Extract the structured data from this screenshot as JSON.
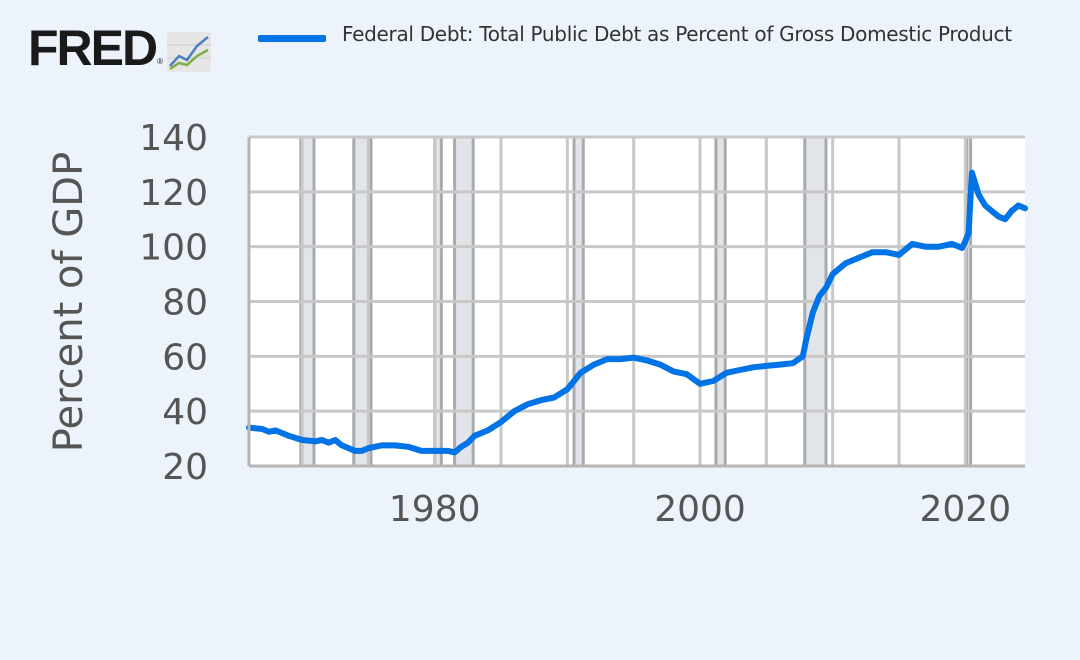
{
  "brand": {
    "logo_text": "FRED",
    "logo_mark": "®",
    "logo_icon": "line-chart-icon"
  },
  "chart_data": {
    "type": "line",
    "title": "",
    "ylabel": "Percent of GDP",
    "xlabel": "",
    "xlim": [
      1966,
      2024.5
    ],
    "ylim": [
      20,
      140
    ],
    "y_ticks": [
      20,
      40,
      60,
      80,
      100,
      120,
      140
    ],
    "x_ticks": [
      1980,
      2000,
      2020
    ],
    "grid": true,
    "legend_position": "top",
    "series": [
      {
        "name": "Federal Debt: Total Public Debt as Percent of Gross Domestic Product",
        "color": "#0073e6",
        "x": [
          1966,
          1967,
          1967.5,
          1968,
          1968.5,
          1969,
          1970,
          1971,
          1971.5,
          1972,
          1972.5,
          1973,
          1974,
          1974.5,
          1975,
          1976,
          1977,
          1978,
          1979,
          1980,
          1981,
          1981.5,
          1982,
          1982.5,
          1983,
          1984,
          1985,
          1986,
          1987,
          1988,
          1989,
          1990,
          1991,
          1992,
          1993,
          1994,
          1995,
          1996,
          1997,
          1998,
          1999,
          2000,
          2001,
          2002,
          2003,
          2004,
          2005,
          2006,
          2007,
          2007.75,
          2008,
          2008.5,
          2009,
          2009.5,
          2010,
          2011,
          2012,
          2013,
          2014,
          2015,
          2016,
          2017,
          2018,
          2019,
          2019.75,
          2020,
          2020.25,
          2020.5,
          2021,
          2021.5,
          2022,
          2022.5,
          2023,
          2023.5,
          2024,
          2024.5
        ],
        "values": [
          34,
          33.5,
          32.5,
          33,
          32,
          31,
          29.5,
          29,
          29.5,
          28.5,
          29.5,
          27.5,
          25.5,
          25.5,
          26.5,
          27.5,
          27.5,
          27,
          25.5,
          25.5,
          25.5,
          25,
          27,
          28.5,
          31,
          33,
          36,
          40,
          42.5,
          44,
          45,
          48,
          54,
          57,
          59,
          59,
          59.5,
          58.5,
          57,
          54.5,
          53.5,
          50,
          51,
          54,
          55,
          56,
          56.5,
          57,
          57.5,
          60,
          66,
          76,
          82,
          85,
          90,
          94,
          96,
          98,
          98,
          97,
          101,
          100,
          100,
          101,
          99.5,
          102,
          105,
          127,
          119,
          115,
          113,
          111,
          110,
          113,
          115,
          114
        ]
      }
    ],
    "recessions": [
      [
        1969.9,
        1970.9
      ],
      [
        1973.9,
        1975.2
      ],
      [
        1980.0,
        1980.5
      ],
      [
        1981.5,
        1982.9
      ],
      [
        1990.5,
        1991.2
      ],
      [
        2001.2,
        2001.9
      ],
      [
        2007.9,
        2009.5
      ],
      [
        2020.1,
        2020.4
      ]
    ]
  }
}
